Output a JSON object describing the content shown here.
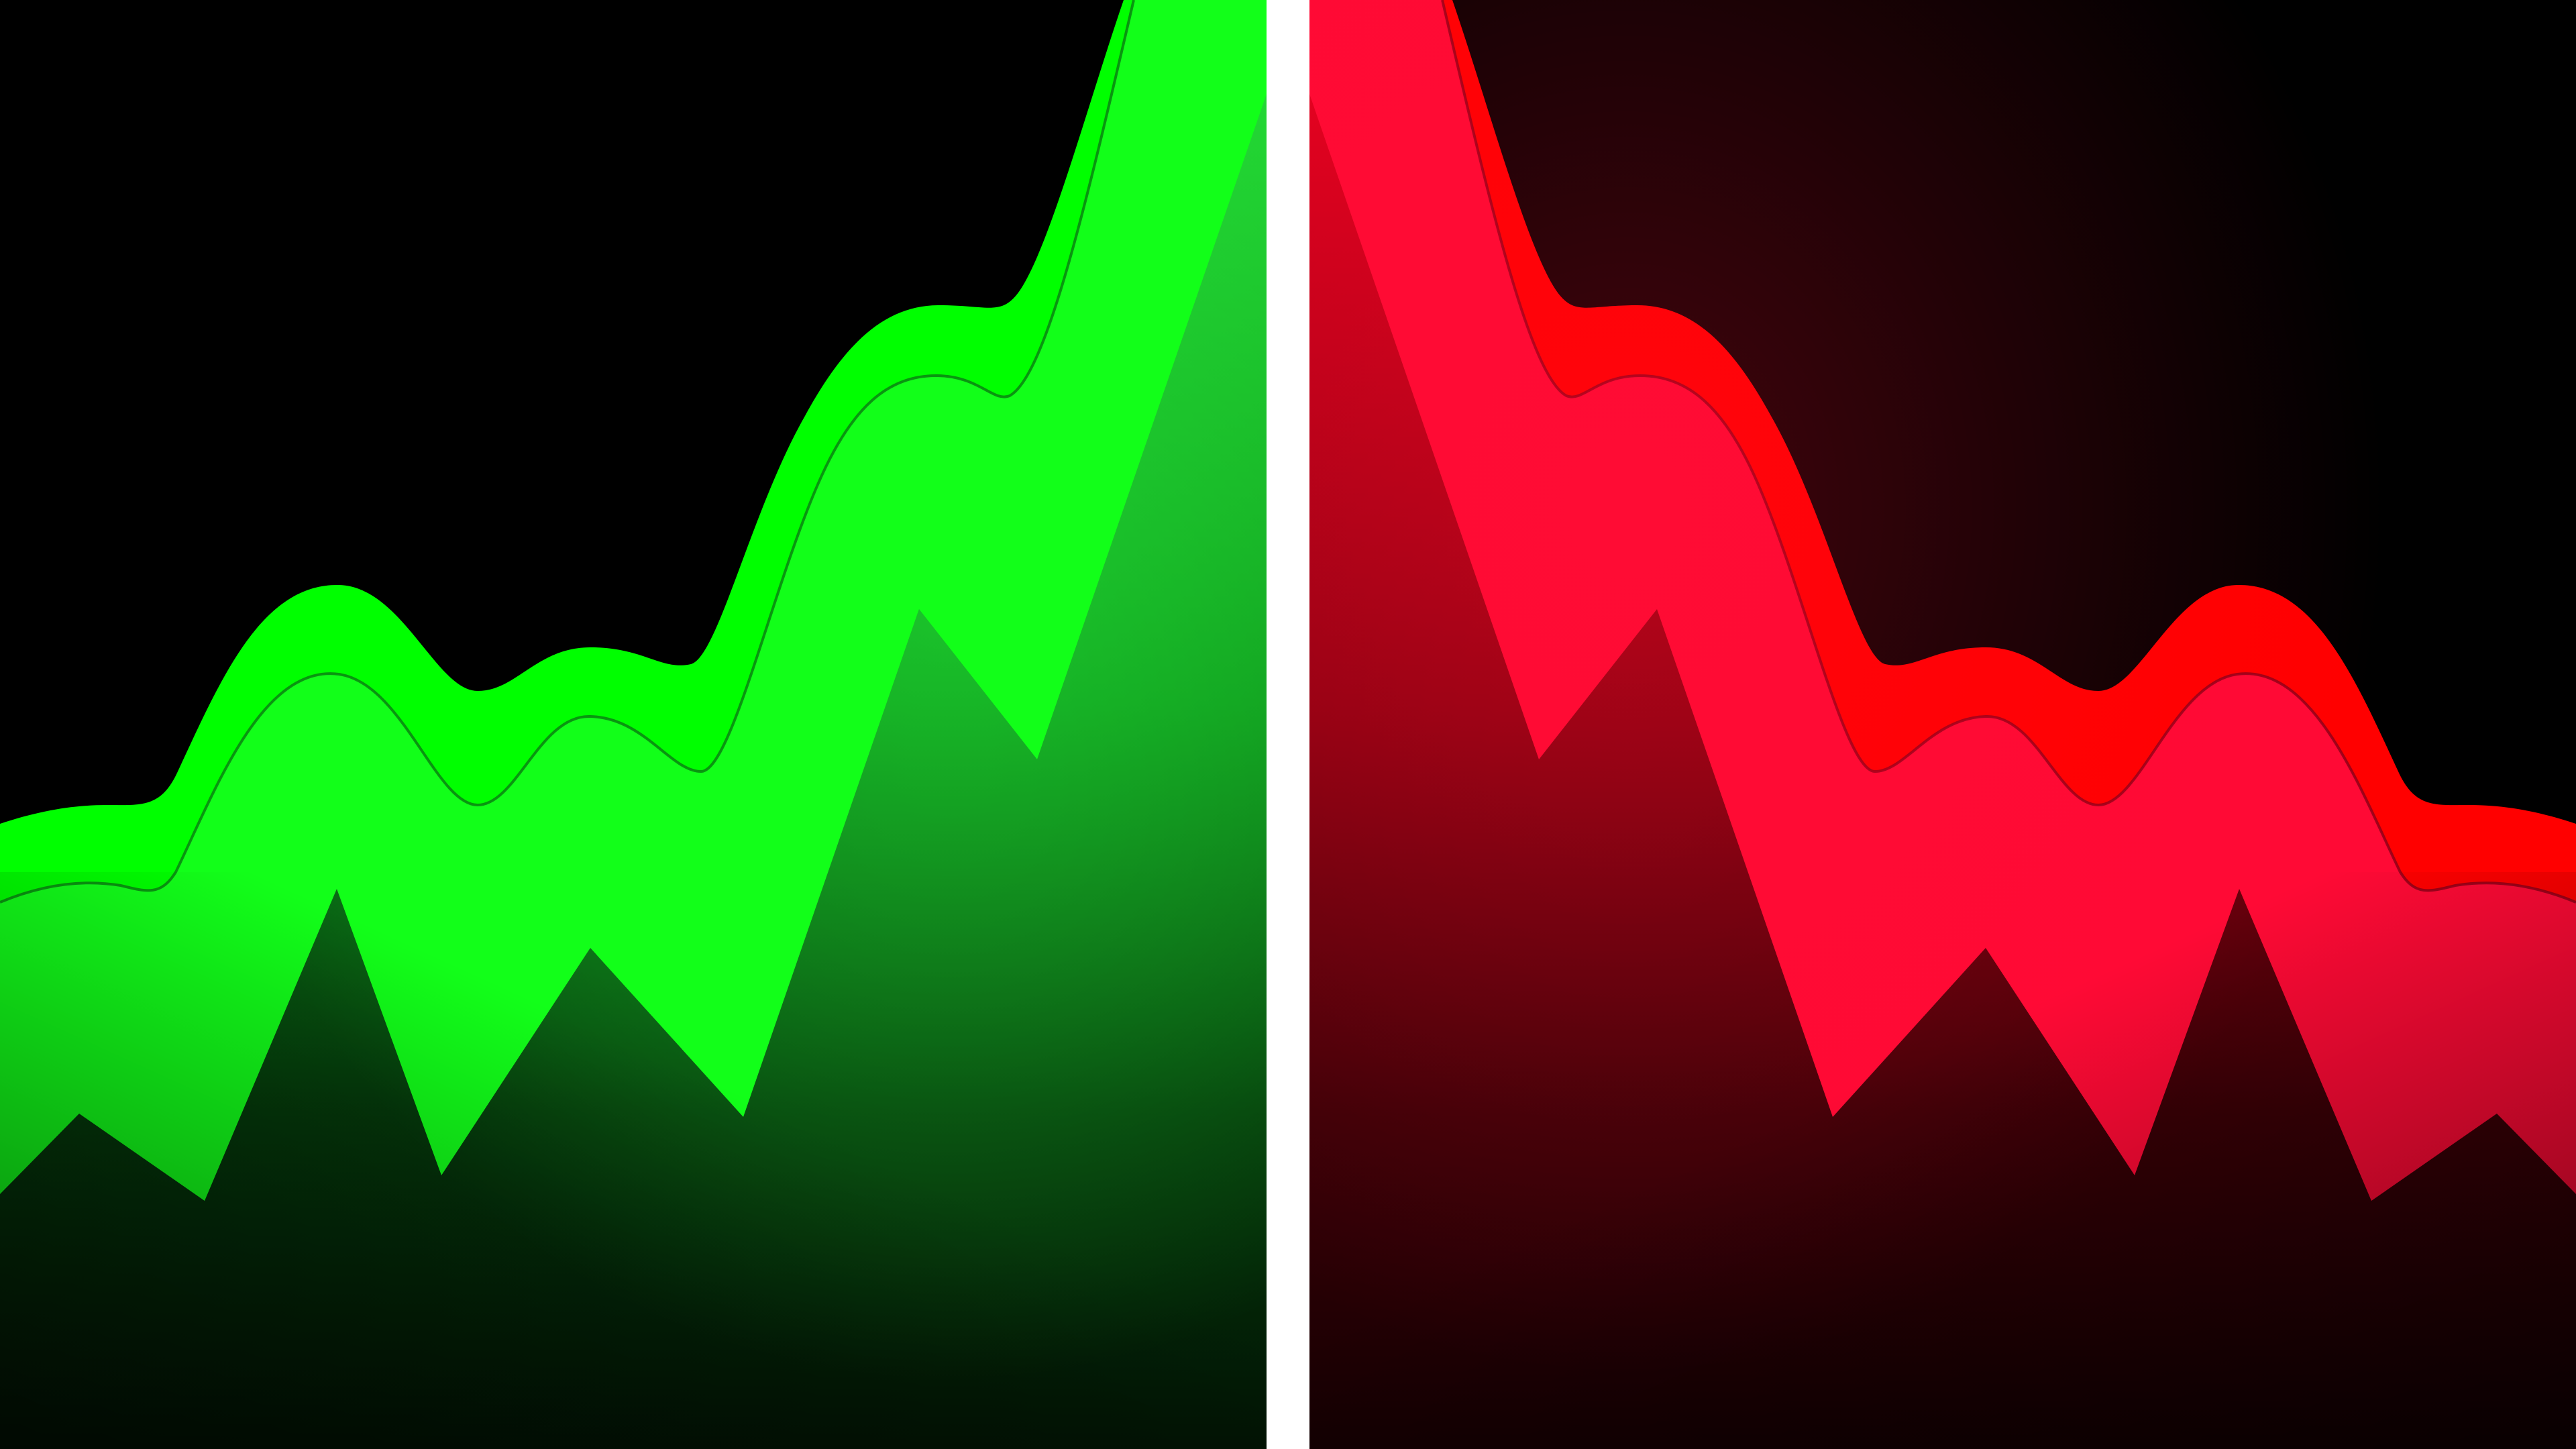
{
  "colors": {
    "background": "#000000",
    "divider": "#ffffff",
    "rising_band": "#00ff00",
    "rising_fill_top": "#1ccc2c",
    "rising_fill_bottom": "#021a06",
    "falling_band": "#ff0000",
    "falling_band_inner": "#ff0a35",
    "falling_fill_top": "#d6001c",
    "falling_fill_bottom": "#1a0204"
  },
  "panels": [
    {
      "name": "rising-panel",
      "trend": "up"
    },
    {
      "name": "falling-panel",
      "trend": "down"
    }
  ]
}
